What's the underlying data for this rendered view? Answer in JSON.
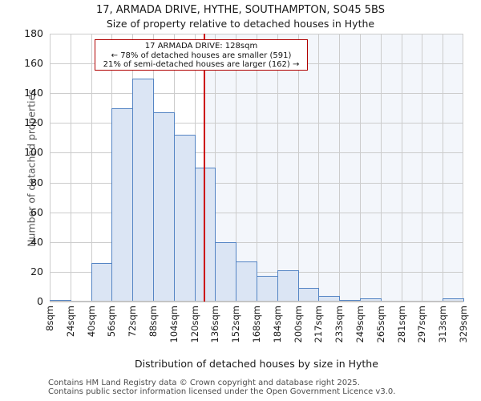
{
  "chart_data": {
    "type": "bar",
    "title": "17, ARMADA DRIVE, HYTHE, SOUTHAMPTON, SO45 5BS",
    "subtitle": "Size of property relative to detached houses in Hythe",
    "xlabel": "Distribution of detached houses by size in Hythe",
    "ylabel": "Number of detached properties",
    "categories": [
      "8sqm",
      "24sqm",
      "40sqm",
      "56sqm",
      "72sqm",
      "88sqm",
      "104sqm",
      "120sqm",
      "136sqm",
      "152sqm",
      "168sqm",
      "184sqm",
      "200sqm",
      "217sqm",
      "233sqm",
      "249sqm",
      "265sqm",
      "281sqm",
      "297sqm",
      "313sqm",
      "329sqm"
    ],
    "values": [
      1,
      0,
      26,
      130,
      150,
      127,
      112,
      90,
      40,
      27,
      17,
      21,
      9,
      4,
      1,
      2,
      0,
      0,
      0,
      2
    ],
    "ylim": [
      0,
      180
    ],
    "ytick_step": 20,
    "grid": true,
    "legend": "none",
    "marker": {
      "value_sqm": 128,
      "x_min_sqm": 8,
      "x_max_sqm": 329,
      "color": "#cc0000"
    },
    "annotation": {
      "lines": [
        "17 ARMADA DRIVE: 128sqm",
        "← 78% of detached houses are smaller (591)",
        "21% of semi-detached houses are larger (162) →"
      ],
      "border_color": "#b00000"
    },
    "colors": {
      "bar_fill": "#dbe5f4",
      "bar_edge": "#5585c4",
      "grid_line": "#cccccc",
      "shade_right_of_marker": "#f3f6fb",
      "axis_line": "#c4c4c4"
    }
  },
  "footer": {
    "line1": "Contains HM Land Registry data © Crown copyright and database right 2025.",
    "line2": "Contains public sector information licensed under the Open Government Licence v3.0."
  }
}
